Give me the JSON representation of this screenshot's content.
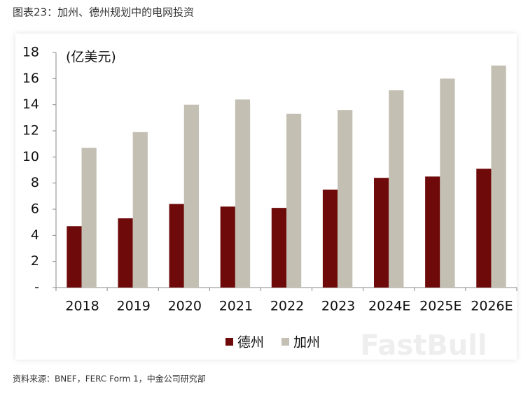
{
  "chart_data": {
    "type": "bar",
    "title": "图表23：加州、德州规划中的电网投资",
    "ylabel": "(亿美元)",
    "source": "资料来源：BNEF，FERC Form 1，中金公司研究部",
    "watermark": "FastBull",
    "categories": [
      "2018",
      "2019",
      "2020",
      "2021",
      "2022",
      "2023",
      "2024E",
      "2025E",
      "2026E"
    ],
    "series": [
      {
        "name": "德州",
        "color": "#6e0a0a",
        "values": [
          4.7,
          5.3,
          6.4,
          6.2,
          6.1,
          7.5,
          8.4,
          8.5,
          9.1
        ]
      },
      {
        "name": "加州",
        "color": "#c3bfb2",
        "values": [
          10.7,
          11.9,
          14.0,
          14.4,
          13.3,
          13.6,
          15.1,
          16.0,
          17.0
        ]
      }
    ],
    "ylim": [
      0,
      18
    ],
    "yticks": [
      {
        "value": 0,
        "label": "-"
      },
      2,
      4,
      6,
      8,
      10,
      12,
      14,
      16,
      18
    ],
    "legend": "bottom"
  }
}
